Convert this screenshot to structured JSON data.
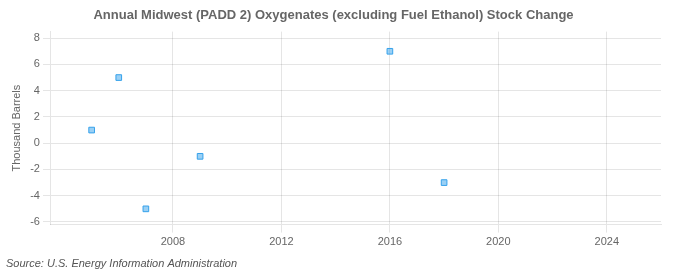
{
  "chart_data": {
    "type": "scatter",
    "title": "Annual Midwest (PADD 2) Oxygenates (excluding Fuel Ethanol) Stock Change",
    "ylabel": "Thousand Barrels",
    "source": "Source: U.S. Energy Information Administration",
    "x": [
      2005,
      2006,
      2007,
      2009,
      2016,
      2018
    ],
    "values": [
      1,
      5,
      -5,
      -1,
      7,
      -3
    ],
    "marker": "square",
    "xlim": [
      2003.5,
      2026
    ],
    "xticks": [
      2008,
      2012,
      2016,
      2020,
      2024
    ],
    "ylim": [
      -6.2,
      8.5
    ],
    "yticks": [
      -6,
      -4,
      -2,
      0,
      2,
      4,
      6,
      8
    ],
    "grid": true
  }
}
